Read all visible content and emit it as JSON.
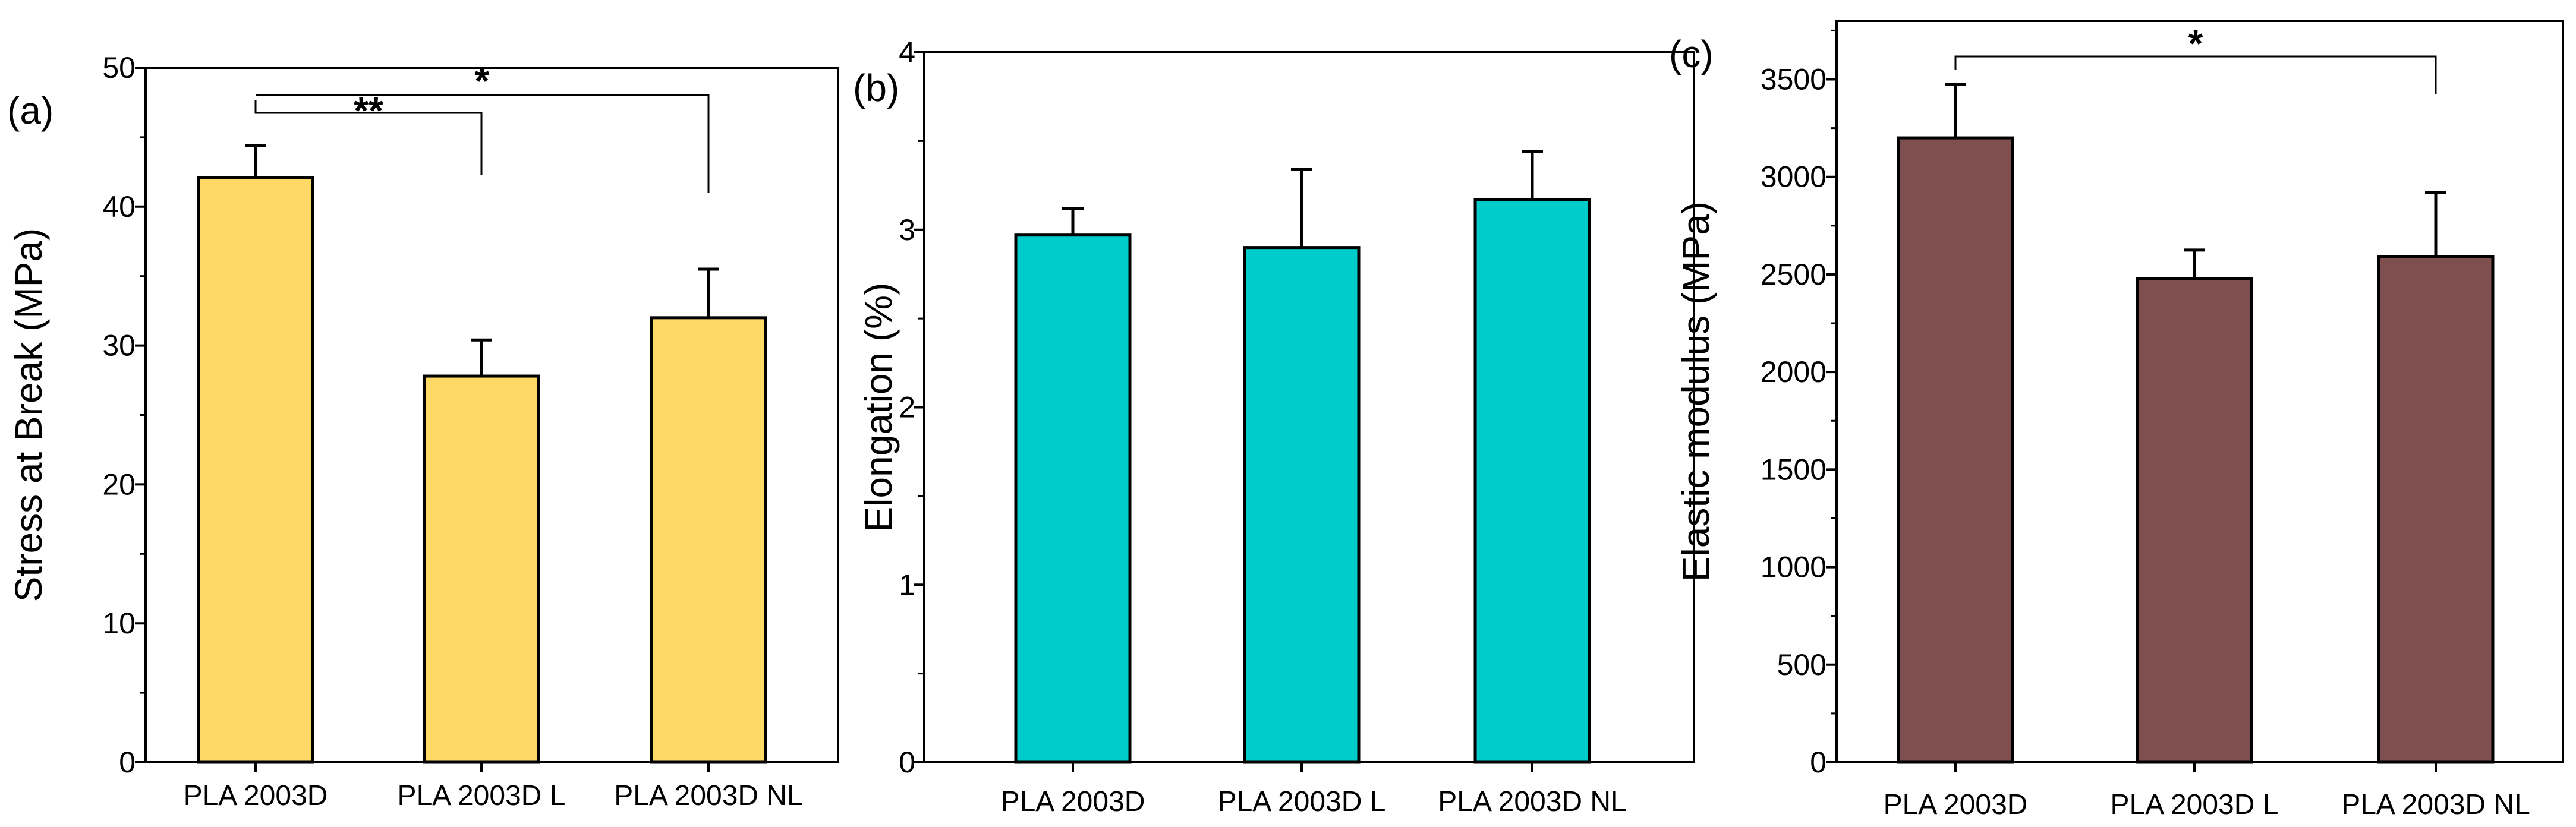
{
  "chart_data": [
    {
      "type": "bar",
      "panel": "(a)",
      "ylabel": "Stress at Break (MPa)",
      "ylim": [
        0,
        50
      ],
      "yticks": [
        0,
        10,
        20,
        30,
        40,
        50
      ],
      "categories": [
        "PLA 2003D",
        "PLA 2003D L",
        "PLA 2003D NL"
      ],
      "values": [
        42.1,
        27.8,
        32.0
      ],
      "errors": [
        2.3,
        2.6,
        3.5
      ],
      "color": "#FFD966",
      "significance": [
        {
          "from": 0,
          "to": 1,
          "label": "**"
        },
        {
          "from": 0,
          "to": 2,
          "label": "*"
        }
      ]
    },
    {
      "type": "bar",
      "panel": "(b)",
      "ylabel": "Elongation (%)",
      "ylim": [
        0,
        4
      ],
      "yticks": [
        0,
        1,
        2,
        3,
        4
      ],
      "categories": [
        "PLA 2003D",
        "PLA 2003D L",
        "PLA 2003D NL"
      ],
      "values": [
        2.97,
        2.9,
        3.17
      ],
      "errors": [
        0.15,
        0.44,
        0.27
      ],
      "color": "#00CCCC",
      "significance": []
    },
    {
      "type": "bar",
      "panel": "(c)",
      "ylabel": "Elastic modulus (MPa)",
      "ylim": [
        0,
        3800
      ],
      "yticks": [
        0,
        500,
        1000,
        1500,
        2000,
        2500,
        3000,
        3500
      ],
      "categories": [
        "PLA 2003D",
        "PLA 2003D L",
        "PLA 2003D NL"
      ],
      "values": [
        3200,
        2480,
        2590
      ],
      "errors": [
        275,
        145,
        330
      ],
      "color": "#7F4F4F",
      "significance": [
        {
          "from": 0,
          "to": 2,
          "label": "*"
        }
      ]
    }
  ]
}
